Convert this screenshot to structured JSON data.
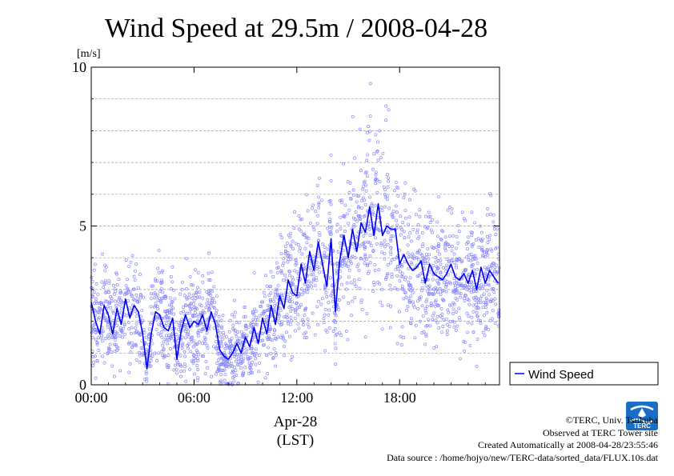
{
  "chart_data": {
    "type": "line",
    "title": "Wind Speed at 29.5m / 2008-04-28",
    "ylabel": "[m/s]",
    "xlabel": "Apr-28",
    "xlabel2": "(LST)",
    "xlim": [
      0,
      23.83
    ],
    "ylim": [
      0,
      10
    ],
    "x_ticks": [
      {
        "value": 0,
        "label": "00:00"
      },
      {
        "value": 6,
        "label": "06:00"
      },
      {
        "value": 12,
        "label": "12:00"
      },
      {
        "value": 18,
        "label": "18:00"
      }
    ],
    "y_ticks": [
      {
        "value": 0,
        "label": "0"
      },
      {
        "value": 5,
        "label": "5"
      },
      {
        "value": 10,
        "label": "10"
      }
    ],
    "grid": "horizontal dashed every 1 m/s",
    "legend": {
      "position": "right-bottom",
      "entries": [
        "Wind Speed"
      ]
    },
    "colors": {
      "line": "#0000ee",
      "scatter": "#8888ff"
    },
    "series": [
      {
        "name": "Wind Speed",
        "style": "line (mean) with scattered 10-s samples",
        "x": [
          0,
          0.25,
          0.5,
          0.75,
          1,
          1.25,
          1.5,
          1.75,
          2,
          2.25,
          2.5,
          2.75,
          3,
          3.25,
          3.5,
          3.75,
          4,
          4.25,
          4.5,
          4.75,
          5,
          5.25,
          5.5,
          5.75,
          6,
          6.25,
          6.5,
          6.75,
          7,
          7.25,
          7.5,
          7.75,
          8,
          8.25,
          8.5,
          8.75,
          9,
          9.25,
          9.5,
          9.75,
          10,
          10.25,
          10.5,
          10.75,
          11,
          11.25,
          11.5,
          11.75,
          12,
          12.25,
          12.5,
          12.75,
          13,
          13.25,
          13.5,
          13.75,
          14,
          14.25,
          14.5,
          14.75,
          15,
          15.25,
          15.5,
          15.75,
          16,
          16.25,
          16.5,
          16.75,
          17,
          17.25,
          17.5,
          17.75,
          18,
          18.25,
          18.5,
          18.75,
          19,
          19.25,
          19.5,
          19.75,
          20,
          20.25,
          20.5,
          20.75,
          21,
          21.25,
          21.5,
          21.75,
          22,
          22.25,
          22.5,
          22.75,
          23,
          23.25,
          23.5,
          23.75
        ],
        "values": [
          2.6,
          2.0,
          1.6,
          2.5,
          2.2,
          1.6,
          2.4,
          1.9,
          2.7,
          2.1,
          2.5,
          2.3,
          1.6,
          0.5,
          1.6,
          2.3,
          2.2,
          1.8,
          1.7,
          2.1,
          0.8,
          1.7,
          2.2,
          1.8,
          2.0,
          1.9,
          2.2,
          1.7,
          2.3,
          1.9,
          1.1,
          0.9,
          0.8,
          1.0,
          1.3,
          1.0,
          1.5,
          1.2,
          1.8,
          1.3,
          2.1,
          1.6,
          2.5,
          1.9,
          2.8,
          2.4,
          3.3,
          2.9,
          2.8,
          3.8,
          3.2,
          4.2,
          3.6,
          4.5,
          3.8,
          3.1,
          4.6,
          2.3,
          3.9,
          4.7,
          4.0,
          4.9,
          4.2,
          5.1,
          4.8,
          5.6,
          4.7,
          5.7,
          4.7,
          5.0,
          4.9,
          4.9,
          3.8,
          4.1,
          3.8,
          3.6,
          3.7,
          3.9,
          3.2,
          3.8,
          3.5,
          3.4,
          3.3,
          3.5,
          3.8,
          3.4,
          3.3,
          3.5,
          3.2,
          3.6,
          3.0,
          3.7,
          3.2,
          3.6,
          3.4,
          3.2
        ]
      }
    ]
  },
  "credits": {
    "copyright": "©TERC, Univ. Tsukuba",
    "observed": "Observed at TERC Tower site",
    "created": "Created Automatically at 2008-04-28/23:55:46",
    "source": "Data source : /home/hojyo/new/TERC-data/sorted_data/FLUX.10s.dat"
  },
  "logo": {
    "text": "TERC",
    "color": "#1a6fc4"
  }
}
